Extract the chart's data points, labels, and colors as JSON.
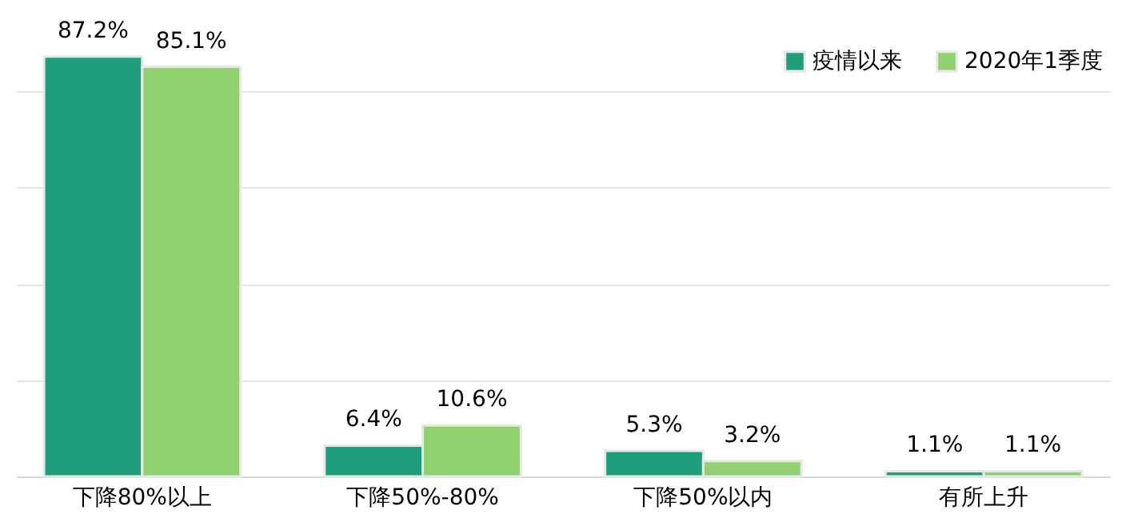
{
  "chart_data": {
    "type": "bar",
    "categories": [
      "下降80%以上",
      "下降50%-80%",
      "下降50%以内",
      "有所上升"
    ],
    "series": [
      {
        "name": "疫情以来",
        "color": "#1e9e7a",
        "values": [
          87.2,
          6.4,
          5.3,
          1.1
        ],
        "value_labels": [
          "87.2%",
          "6.4%",
          "5.3%",
          "1.1%"
        ]
      },
      {
        "name": "2020年1季度",
        "color": "#8fd16e",
        "values": [
          85.1,
          10.6,
          3.2,
          1.1
        ],
        "value_labels": [
          "85.1%",
          "10.6%",
          "3.2%",
          "1.1%"
        ]
      }
    ],
    "grid": "y",
    "tick_labels": "x",
    "legend": "top right"
  }
}
